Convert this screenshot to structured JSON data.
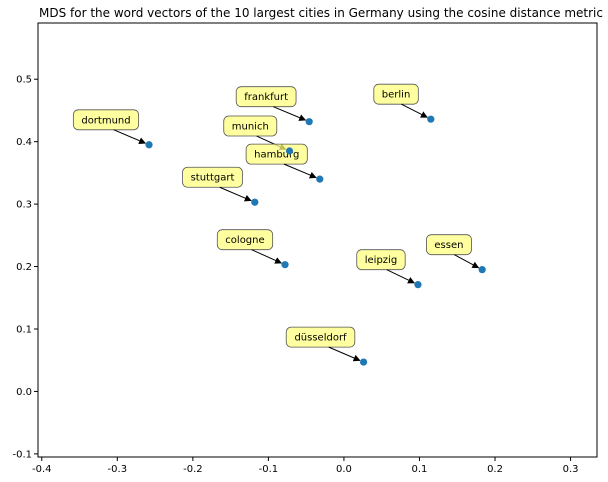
{
  "chart_data": {
    "type": "scatter",
    "title": "MDS for the word vectors of the 10 largest cities in Germany using the cosine distance metric",
    "xlabel": "",
    "ylabel": "",
    "xlim": [
      -0.405,
      0.335
    ],
    "ylim": [
      -0.105,
      0.59
    ],
    "xticks": [
      "-0.4",
      "-0.3",
      "-0.2",
      "-0.1",
      "0.0",
      "0.1",
      "0.2",
      "0.3"
    ],
    "xtick_values": [
      -0.4,
      -0.3,
      -0.2,
      -0.1,
      0.0,
      0.1,
      0.2,
      0.3
    ],
    "yticks": [
      "-0.1",
      "0.0",
      "0.1",
      "0.2",
      "0.3",
      "0.4",
      "0.5"
    ],
    "ytick_values": [
      -0.1,
      0.0,
      0.1,
      0.2,
      0.3,
      0.4,
      0.5
    ],
    "grid": false,
    "marker_color": "#1f77b4",
    "annotation_color": "#ffff80",
    "points": [
      {
        "label": "dortmund",
        "x": -0.258,
        "y": 0.395,
        "text_x": -0.315,
        "text_y": 0.435
      },
      {
        "label": "frankfurt",
        "x": -0.046,
        "y": 0.432,
        "text_x": -0.103,
        "text_y": 0.472
      },
      {
        "label": "berlin",
        "x": 0.115,
        "y": 0.436,
        "text_x": 0.069,
        "text_y": 0.476
      },
      {
        "label": "munich",
        "x": -0.072,
        "y": 0.385,
        "text_x": -0.124,
        "text_y": 0.425
      },
      {
        "label": "hamburg",
        "x": -0.032,
        "y": 0.34,
        "text_x": -0.089,
        "text_y": 0.38
      },
      {
        "label": "stuttgart",
        "x": -0.118,
        "y": 0.303,
        "text_x": -0.174,
        "text_y": 0.343
      },
      {
        "label": "cologne",
        "x": -0.078,
        "y": 0.203,
        "text_x": -0.131,
        "text_y": 0.243
      },
      {
        "label": "leipzig",
        "x": 0.098,
        "y": 0.171,
        "text_x": 0.049,
        "text_y": 0.211
      },
      {
        "label": "essen",
        "x": 0.183,
        "y": 0.195,
        "text_x": 0.139,
        "text_y": 0.235
      },
      {
        "label": "düsseldorf",
        "x": 0.026,
        "y": 0.047,
        "text_x": -0.031,
        "text_y": 0.087
      }
    ]
  }
}
